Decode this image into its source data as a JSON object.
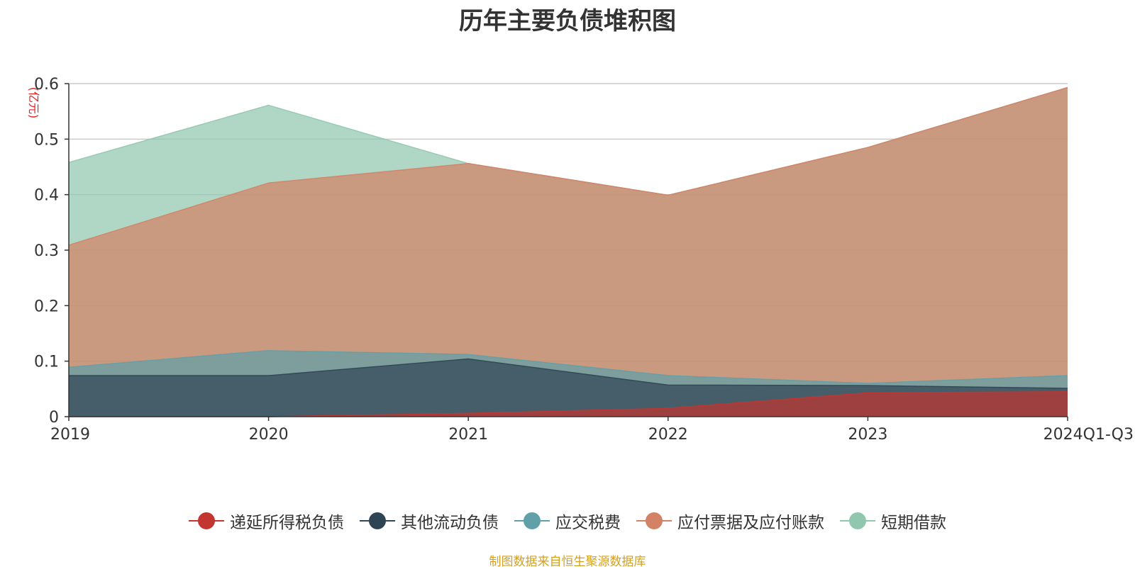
{
  "colors": {
    "递延所得税负债": "#c23531",
    "其他流动负债": "#2f4554",
    "应交税费": "#61a0a8",
    "应付票据及应付账款": "#d48265",
    "短期借款": "#91c7ae",
    "source_note": "#d4a020"
  },
  "chart_data": {
    "type": "area",
    "stacked": false,
    "title": "历年主要负债堆积图",
    "unit_label": "(亿元)",
    "xlabel": "",
    "ylabel": "",
    "categories": [
      "2019",
      "2020",
      "2021",
      "2022",
      "2023",
      "2024Q1-Q3"
    ],
    "ylim": [
      0,
      0.6
    ],
    "yticks": [
      0,
      0.1,
      0.2,
      0.3,
      0.4,
      0.5,
      0.6
    ],
    "ytick_labels": [
      "0",
      "0.1",
      "0.2",
      "0.3",
      "0.4",
      "0.5",
      "0.6"
    ],
    "grid": true,
    "legend_position": "bottom",
    "series": [
      {
        "name": "短期借款",
        "values": [
          0.458,
          0.561,
          0.456,
          0.399,
          0.485,
          0.593
        ]
      },
      {
        "name": "应付票据及应付账款",
        "values": [
          0.309,
          0.421,
          0.456,
          0.399,
          0.485,
          0.593
        ]
      },
      {
        "name": "应交税费",
        "values": [
          0.089,
          0.119,
          0.112,
          0.074,
          0.06,
          0.074
        ]
      },
      {
        "name": "其他流动负债",
        "values": [
          0.074,
          0.074,
          0.104,
          0.057,
          0.056,
          0.051
        ]
      },
      {
        "name": "递延所得税负债",
        "values": [
          0.0,
          0.0,
          0.006,
          0.015,
          0.043,
          0.045
        ]
      }
    ]
  },
  "legend": [
    {
      "name": "递延所得税负债",
      "color": "#c23531"
    },
    {
      "name": "其他流动负债",
      "color": "#2f4554"
    },
    {
      "name": "应交税费",
      "color": "#61a0a8"
    },
    {
      "name": "应付票据及应付账款",
      "color": "#d48265"
    },
    {
      "name": "短期借款",
      "color": "#91c7ae"
    }
  ],
  "source_note": "制图数据来自恒生聚源数据库"
}
